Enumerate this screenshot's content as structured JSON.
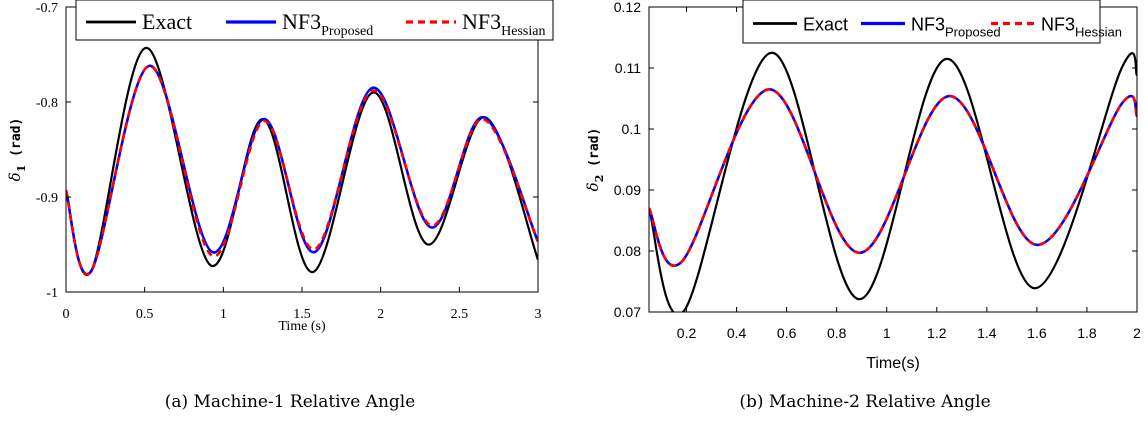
{
  "captions": {
    "a": "(a) Machine-1 Relative Angle",
    "b": "(b) Machine-2 Relative Angle"
  },
  "colors": {
    "exact": "#000000",
    "proposed": "#0000ff",
    "hessian": "#ff0000"
  },
  "chart_data": [
    {
      "type": "line",
      "xlabel": "Time (s)",
      "ylabel_main": "δ",
      "ylabel_sub": "1",
      "ylabel_unit": "(rad)",
      "xlim": [
        0,
        3
      ],
      "ylim": [
        -1,
        -0.7
      ],
      "xticks": [
        0,
        0.5,
        1,
        1.5,
        2,
        2.5,
        3
      ],
      "xtick_labels": [
        "0",
        "0.5",
        "1",
        "1.5",
        "2",
        "2.5",
        "3"
      ],
      "yticks": [
        -1,
        -0.9,
        -0.8,
        -0.7
      ],
      "ytick_labels": [
        "-1",
        "-0.9",
        "-0.8",
        "-0.7"
      ],
      "legend_location": "top",
      "legend": [
        {
          "base": "Exact",
          "sub": ""
        },
        {
          "base": "NF3",
          "sub": "Proposed"
        },
        {
          "base": "NF3",
          "sub": "Hessian"
        }
      ],
      "series": [
        {
          "name": "Exact",
          "x": [
            0,
            0.16,
            0.51,
            0.92,
            1.25,
            1.57,
            1.95,
            2.3,
            2.66,
            3.0
          ],
          "y": [
            -0.893,
            -0.978,
            -0.743,
            -0.972,
            -0.818,
            -0.979,
            -0.79,
            -0.95,
            -0.816,
            -0.966
          ]
        },
        {
          "name": "NF3 Proposed",
          "x": [
            0,
            0.16,
            0.53,
            0.93,
            1.26,
            1.58,
            1.95,
            2.32,
            2.65,
            3.0
          ],
          "y": [
            -0.893,
            -0.978,
            -0.762,
            -0.958,
            -0.818,
            -0.958,
            -0.785,
            -0.932,
            -0.816,
            -0.947
          ]
        },
        {
          "name": "NF3 Hessian",
          "x": [
            0,
            0.16,
            0.53,
            0.93,
            1.26,
            1.58,
            1.95,
            2.32,
            2.65,
            3.0
          ],
          "y": [
            -0.893,
            -0.978,
            -0.762,
            -0.962,
            -0.82,
            -0.955,
            -0.788,
            -0.93,
            -0.818,
            -0.947
          ]
        }
      ]
    },
    {
      "type": "line",
      "xlabel": "Time(s)",
      "ylabel_main": "δ",
      "ylabel_sub": "2",
      "ylabel_unit": "(rad)",
      "xlim": [
        0.05,
        2
      ],
      "ylim": [
        0.07,
        0.12
      ],
      "xticks": [
        0.2,
        0.4,
        0.6,
        0.8,
        1,
        1.2,
        1.4,
        1.6,
        1.8,
        2
      ],
      "xtick_labels": [
        "0.2",
        "0.4",
        "0.6",
        "0.8",
        "1",
        "1.2",
        "1.4",
        "1.6",
        "1.8",
        "2"
      ],
      "yticks": [
        0.07,
        0.08,
        0.09,
        0.1,
        0.11,
        0.12
      ],
      "ytick_labels": [
        "0.07",
        "0.08",
        "0.09",
        "0.1",
        "0.11",
        "0.12"
      ],
      "legend_location": "top",
      "legend": [
        {
          "base": "Exact",
          "sub": ""
        },
        {
          "base": "NF3",
          "sub": "Proposed"
        },
        {
          "base": "NF3",
          "sub": "Hessian"
        }
      ],
      "series": [
        {
          "name": "Exact",
          "x": [
            0.05,
            0.19,
            0.54,
            0.89,
            1.24,
            1.59,
            1.94,
            2.0
          ],
          "y": [
            0.087,
            0.0702,
            0.1125,
            0.0721,
            0.1115,
            0.0739,
            0.1101,
            0.1088
          ]
        },
        {
          "name": "NF3 Proposed",
          "x": [
            0.05,
            0.18,
            0.53,
            0.89,
            1.25,
            1.6,
            1.94,
            2.0
          ],
          "y": [
            0.087,
            0.0782,
            0.1065,
            0.0797,
            0.1054,
            0.081,
            0.1042,
            0.1021
          ]
        },
        {
          "name": "NF3 Hessian",
          "x": [
            0.05,
            0.18,
            0.53,
            0.89,
            1.25,
            1.6,
            1.94,
            2.0
          ],
          "y": [
            0.087,
            0.0782,
            0.1065,
            0.0797,
            0.1054,
            0.081,
            0.1042,
            0.1021
          ]
        }
      ]
    }
  ]
}
